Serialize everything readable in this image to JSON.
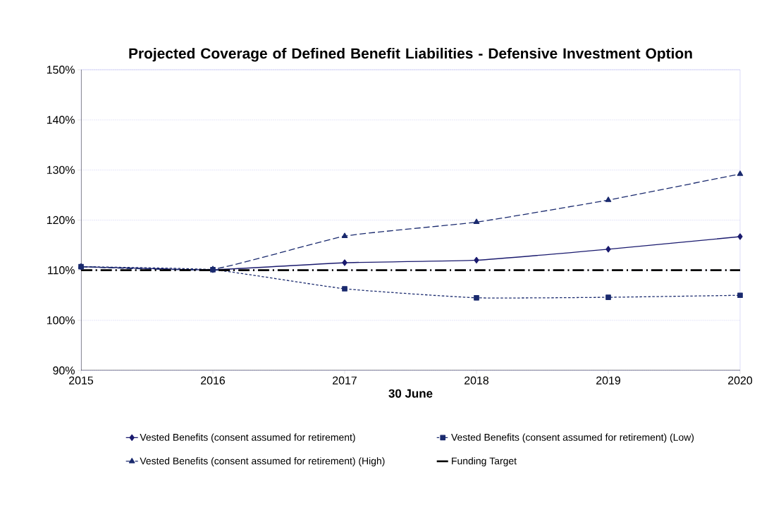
{
  "chart_data": {
    "type": "line",
    "title": "Projected Coverage of Defined Benefit Liabilities - Defensive Investment Option",
    "xlabel": "30 June",
    "x": [
      2015,
      2016,
      2017,
      2018,
      2019,
      2020
    ],
    "xlim": [
      2015,
      2020
    ],
    "xticks": [
      2015,
      2016,
      2017,
      2018,
      2019,
      2020
    ],
    "ylim": [
      90,
      150
    ],
    "yticks": [
      {
        "value": 90,
        "label": "90%"
      },
      {
        "value": 100,
        "label": "100%"
      },
      {
        "value": 110,
        "label": "110%"
      },
      {
        "value": 120,
        "label": "120%"
      },
      {
        "value": 130,
        "label": "130%"
      },
      {
        "value": 140,
        "label": "140%"
      },
      {
        "value": 150,
        "label": "150%"
      }
    ],
    "grid": "y",
    "legend": "bottom",
    "series": [
      {
        "name": "Vested Benefits  (consent assumed for retirement)",
        "color": "#1a1a6e",
        "marker": "diamond",
        "line_style": "solid",
        "values": [
          110.7,
          110.1,
          111.5,
          112.0,
          114.2,
          116.7
        ]
      },
      {
        "name": "Vested Benefits  (consent assumed for retirement) (Low)",
        "color": "#1a2a6e",
        "marker": "square",
        "line_style": "dotted",
        "values": [
          110.7,
          110.1,
          106.3,
          104.5,
          104.6,
          105.0
        ]
      },
      {
        "name": "Vested Benefits  (consent assumed for retirement) (High)",
        "color": "#1a2a6e",
        "marker": "triangle",
        "line_style": "dashed",
        "values": [
          110.7,
          110.2,
          116.8,
          119.6,
          124.0,
          129.2
        ]
      },
      {
        "name": "Funding Target",
        "color": "#000000",
        "marker": "none",
        "line_style": "dashdot",
        "values": [
          110,
          110,
          110,
          110,
          110,
          110
        ]
      }
    ]
  }
}
